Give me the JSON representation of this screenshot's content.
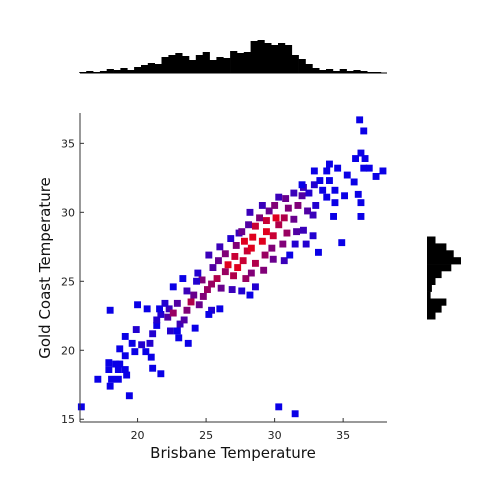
{
  "chart_data": {
    "type": "heatmap",
    "subtype": "2d-histogram-with-marginal-histograms",
    "xlabel": "Brisbane Temperature",
    "ylabel": "Gold Coast Temperature",
    "xlim": [
      15.8,
      38.2
    ],
    "ylim": [
      14.8,
      37.2
    ],
    "xticks": [
      20,
      25,
      30,
      35
    ],
    "yticks": [
      15,
      20,
      25,
      30,
      35
    ],
    "grid": false,
    "bin_size": 0.5,
    "color_low": "#0a00e6",
    "color_high": "#e0001e",
    "marginal_color": "#000000",
    "cells": [
      [
        15.9,
        15.9,
        1
      ],
      [
        17.1,
        17.9,
        1
      ],
      [
        17.9,
        18.6,
        1
      ],
      [
        17.9,
        19.1,
        1
      ],
      [
        18.4,
        19.0,
        1
      ],
      [
        18.0,
        17.4,
        1
      ],
      [
        18.1,
        17.9,
        1
      ],
      [
        18.6,
        18.6,
        1
      ],
      [
        18.6,
        17.9,
        1
      ],
      [
        18.7,
        19.0,
        1
      ],
      [
        19.1,
        18.6,
        1
      ],
      [
        19.4,
        16.7,
        1
      ],
      [
        19.1,
        19.6,
        1
      ],
      [
        19.6,
        20.5,
        1
      ],
      [
        19.8,
        19.9,
        1
      ],
      [
        19.1,
        21.0,
        1
      ],
      [
        18.7,
        20.1,
        1
      ],
      [
        19.9,
        21.5,
        2
      ],
      [
        20.3,
        20.4,
        2
      ],
      [
        20.6,
        19.9,
        1
      ],
      [
        20.9,
        20.5,
        2
      ],
      [
        21.1,
        21.2,
        2
      ],
      [
        21.4,
        21.8,
        1
      ],
      [
        21.4,
        22.2,
        2
      ],
      [
        21.7,
        22.6,
        2
      ],
      [
        21.0,
        19.5,
        1
      ],
      [
        21.1,
        18.7,
        1
      ],
      [
        21.7,
        18.3,
        1
      ],
      [
        18.0,
        22.9,
        1
      ],
      [
        20.7,
        23.0,
        1
      ],
      [
        21.6,
        23.0,
        1
      ],
      [
        22.2,
        22.4,
        4
      ],
      [
        22.3,
        23.0,
        3
      ],
      [
        22.6,
        22.7,
        7
      ],
      [
        22.9,
        23.4,
        4
      ],
      [
        22.6,
        24.6,
        1
      ],
      [
        22.0,
        23.4,
        2
      ],
      [
        22.4,
        21.4,
        2
      ],
      [
        23.1,
        21.9,
        3
      ],
      [
        23.4,
        22.2,
        4
      ],
      [
        23.0,
        20.9,
        1
      ],
      [
        23.7,
        20.5,
        1
      ],
      [
        23.6,
        22.9,
        6
      ],
      [
        23.9,
        23.5,
        8
      ],
      [
        24.1,
        24.0,
        5
      ],
      [
        23.6,
        24.3,
        3
      ],
      [
        23.3,
        25.2,
        1
      ],
      [
        24.2,
        21.6,
        1
      ],
      [
        24.5,
        23.3,
        5
      ],
      [
        24.8,
        23.9,
        6
      ],
      [
        25.1,
        24.4,
        7
      ],
      [
        24.7,
        25.1,
        6
      ],
      [
        24.4,
        25.6,
        2
      ],
      [
        25.4,
        22.9,
        2
      ],
      [
        25.4,
        24.8,
        7
      ],
      [
        25.8,
        25.2,
        8
      ],
      [
        25.5,
        26.0,
        4
      ],
      [
        25.9,
        26.5,
        5
      ],
      [
        25.2,
        26.9,
        3
      ],
      [
        25.2,
        22.6,
        1
      ],
      [
        26.1,
        24.5,
        5
      ],
      [
        26.4,
        25.7,
        7
      ],
      [
        26.6,
        26.2,
        10
      ],
      [
        26.4,
        27.0,
        6
      ],
      [
        26.0,
        27.5,
        3
      ],
      [
        26.8,
        28.1,
        2
      ],
      [
        26.9,
        24.4,
        3
      ],
      [
        27.0,
        25.4,
        8
      ],
      [
        27.3,
        26.0,
        10
      ],
      [
        27.1,
        26.8,
        9
      ],
      [
        27.2,
        27.6,
        6
      ],
      [
        27.4,
        28.5,
        3
      ],
      [
        27.6,
        24.3,
        2
      ],
      [
        27.9,
        25.2,
        7
      ],
      [
        27.7,
        26.5,
        9
      ],
      [
        28.0,
        27.2,
        9
      ],
      [
        27.8,
        27.9,
        10
      ],
      [
        27.6,
        28.6,
        5
      ],
      [
        28.1,
        29.1,
        4
      ],
      [
        28.3,
        25.6,
        6
      ],
      [
        28.6,
        26.3,
        8
      ],
      [
        28.3,
        27.4,
        10
      ],
      [
        28.4,
        28.2,
        10
      ],
      [
        28.6,
        29.0,
        9
      ],
      [
        28.9,
        29.6,
        6
      ],
      [
        28.2,
        30.0,
        3
      ],
      [
        28.6,
        24.6,
        2
      ],
      [
        29.2,
        25.8,
        6
      ],
      [
        29.3,
        26.9,
        7
      ],
      [
        29.1,
        27.9,
        10
      ],
      [
        29.4,
        28.6,
        10
      ],
      [
        29.4,
        29.4,
        9
      ],
      [
        29.6,
        30.1,
        5
      ],
      [
        29.1,
        30.5,
        3
      ],
      [
        29.9,
        26.6,
        5
      ],
      [
        29.8,
        27.4,
        6
      ],
      [
        29.9,
        28.3,
        9
      ],
      [
        30.3,
        29.1,
        8
      ],
      [
        30.1,
        29.6,
        10
      ],
      [
        30.0,
        30.5,
        6
      ],
      [
        30.3,
        31.1,
        3
      ],
      [
        30.7,
        26.5,
        3
      ],
      [
        30.6,
        27.7,
        6
      ],
      [
        30.9,
        28.5,
        7
      ],
      [
        30.7,
        29.6,
        8
      ],
      [
        31.0,
        30.3,
        6
      ],
      [
        30.8,
        31.0,
        5
      ],
      [
        31.4,
        31.4,
        3
      ],
      [
        31.5,
        27.7,
        2
      ],
      [
        31.6,
        28.6,
        4
      ],
      [
        31.4,
        29.5,
        5
      ],
      [
        31.7,
        30.5,
        6
      ],
      [
        32.0,
        31.2,
        4
      ],
      [
        32.1,
        31.8,
        3
      ],
      [
        31.1,
        26.9,
        1
      ],
      [
        32.1,
        28.7,
        3
      ],
      [
        32.4,
        30.1,
        4
      ],
      [
        32.3,
        27.7,
        2
      ],
      [
        32.5,
        31.4,
        2
      ],
      [
        32.9,
        32.0,
        2
      ],
      [
        32.8,
        28.3,
        2
      ],
      [
        32.8,
        29.8,
        3
      ],
      [
        33.0,
        30.5,
        2
      ],
      [
        32.9,
        33.0,
        1
      ],
      [
        33.3,
        32.3,
        1
      ],
      [
        33.5,
        31.6,
        1
      ],
      [
        33.2,
        27.1,
        1
      ],
      [
        33.8,
        31.1,
        1
      ],
      [
        34.0,
        33.5,
        1
      ],
      [
        34.0,
        32.3,
        1
      ],
      [
        34.4,
        31.6,
        1
      ],
      [
        34.4,
        30.7,
        1
      ],
      [
        34.3,
        29.7,
        1
      ],
      [
        34.6,
        33.2,
        1
      ],
      [
        35.1,
        31.2,
        1
      ],
      [
        35.3,
        32.7,
        1
      ],
      [
        35.8,
        32.2,
        1
      ],
      [
        35.9,
        33.9,
        1
      ],
      [
        36.1,
        31.3,
        1
      ],
      [
        36.3,
        30.7,
        1
      ],
      [
        36.3,
        29.7,
        1
      ],
      [
        36.5,
        33.2,
        1
      ],
      [
        36.5,
        35.9,
        1
      ],
      [
        36.2,
        36.7,
        1
      ],
      [
        36.6,
        33.9,
        1
      ],
      [
        36.9,
        33.2,
        1
      ],
      [
        37.4,
        32.6,
        1
      ],
      [
        37.9,
        33.0,
        1
      ],
      [
        36.3,
        34.3,
        1
      ],
      [
        34.9,
        27.8,
        1
      ],
      [
        33.8,
        33.0,
        1
      ],
      [
        32.0,
        32.0,
        1
      ],
      [
        30.3,
        15.9,
        1
      ],
      [
        31.5,
        15.4,
        1
      ],
      [
        19.2,
        18.2,
        1
      ],
      [
        20.0,
        23.3,
        1
      ],
      [
        22.9,
        21.4,
        1
      ],
      [
        24.3,
        25.0,
        2
      ],
      [
        26.0,
        23.0,
        1
      ],
      [
        28.2,
        24.0,
        1
      ]
    ],
    "marginal_x": {
      "bin_size": 0.5,
      "x": [
        16.0,
        16.5,
        17.0,
        17.5,
        18.0,
        18.5,
        19.0,
        19.5,
        20.0,
        20.5,
        21.0,
        21.5,
        22.0,
        22.5,
        23.0,
        23.5,
        24.0,
        24.5,
        25.0,
        25.5,
        26.0,
        26.5,
        27.0,
        27.5,
        28.0,
        28.5,
        29.0,
        29.5,
        30.0,
        30.5,
        31.0,
        31.5,
        32.0,
        32.5,
        33.0,
        33.5,
        34.0,
        34.5,
        35.0,
        35.5,
        36.0,
        36.5,
        37.0,
        37.5
      ],
      "counts": [
        1,
        2,
        1,
        2,
        4,
        3,
        5,
        3,
        6,
        8,
        10,
        9,
        16,
        18,
        20,
        17,
        13,
        18,
        21,
        13,
        16,
        15,
        22,
        20,
        21,
        32,
        33,
        30,
        28,
        30,
        28,
        18,
        14,
        9,
        5,
        3,
        4,
        2,
        4,
        2,
        3,
        2,
        1,
        1
      ]
    },
    "marginal_y": {
      "bin_size": 0.5,
      "y": [
        22.5,
        23.0,
        23.5,
        24.0,
        24.5,
        25.0,
        25.5,
        26.0,
        26.5,
        27.0,
        27.5,
        28.0
      ],
      "counts": [
        7,
        12,
        16,
        3,
        4,
        7,
        12,
        20,
        28,
        22,
        16,
        7
      ]
    }
  }
}
